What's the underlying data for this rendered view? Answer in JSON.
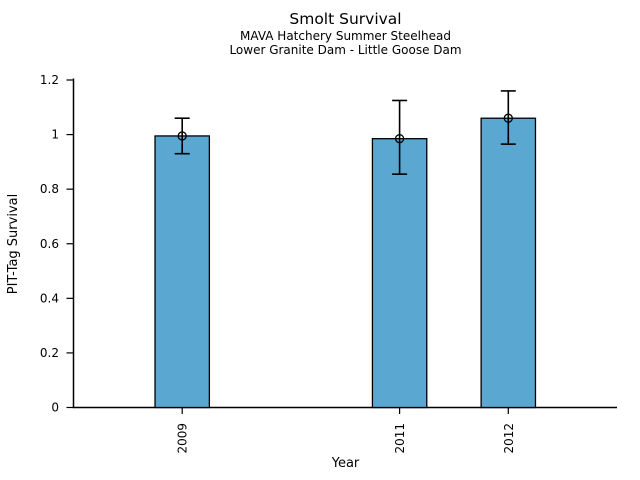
{
  "chart_data": {
    "type": "bar",
    "title": "Smolt Survival",
    "subtitle1": "MAVA Hatchery Summer Steelhead",
    "subtitle2": "Lower Granite Dam - Little Goose Dam",
    "xlabel": "Year",
    "ylabel": "PIT-Tag Survival",
    "categories": [
      "2009",
      "2011",
      "2012"
    ],
    "x_values": [
      2009,
      2011,
      2012
    ],
    "values": [
      0.995,
      0.985,
      1.06
    ],
    "error_low": [
      0.93,
      0.855,
      0.965
    ],
    "error_high": [
      1.06,
      1.125,
      1.16
    ],
    "marker": "open-circle",
    "xlim": [
      2008,
      2013
    ],
    "ylim": [
      0,
      1.2
    ],
    "yticks": [
      0,
      0.2,
      0.4,
      0.6,
      0.8,
      1,
      1.2
    ],
    "ytick_labels": [
      "0",
      "0.2",
      "0.4",
      "0.6",
      "0.8",
      "1",
      "1.2"
    ],
    "bar_width_years": 0.5,
    "grid": false,
    "legend": null,
    "bar_color": "#5AA7D2",
    "bar_edge_color": "#000000",
    "error_color": "#000000",
    "axis_color": "#000000",
    "background_color": "#FFFFFF"
  }
}
